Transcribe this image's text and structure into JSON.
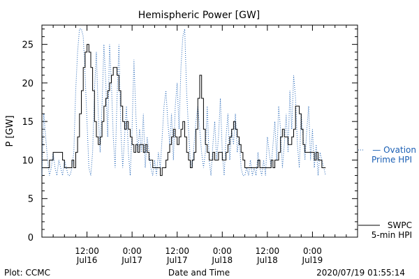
{
  "chart_data": {
    "type": "line",
    "title": "Hemispheric Power [GW]",
    "ylabel": "P [GW]",
    "xlabel": "Date and Time",
    "ylim": [
      0,
      27.5
    ],
    "yticks": [
      0,
      5,
      10,
      15,
      20,
      25
    ],
    "xlim_hours": [
      0,
      84
    ],
    "xticks": [
      {
        "hour": 12,
        "time": "12:00",
        "date": "Jul16"
      },
      {
        "hour": 24,
        "time": "0:00",
        "date": "Jul17"
      },
      {
        "hour": 36,
        "time": "12:00",
        "date": "Jul17"
      },
      {
        "hour": 48,
        "time": "0:00",
        "date": "Jul18"
      },
      {
        "hour": 60,
        "time": "12:00",
        "date": "Jul18"
      },
      {
        "hour": 72,
        "time": "0:00",
        "date": "Jul19"
      }
    ],
    "grid": false,
    "series": [
      {
        "name": "SWPC 5-min HPI",
        "color": "#000000",
        "style": "solid",
        "points": [
          [
            0,
            9
          ],
          [
            1,
            9
          ],
          [
            1.5,
            9
          ],
          [
            2,
            10
          ],
          [
            2.5,
            10
          ],
          [
            3,
            11
          ],
          [
            4,
            11
          ],
          [
            5,
            11
          ],
          [
            5.5,
            10
          ],
          [
            6,
            9
          ],
          [
            6.5,
            9
          ],
          [
            7,
            9
          ],
          [
            7.5,
            9
          ],
          [
            8,
            10
          ],
          [
            8.5,
            9
          ],
          [
            9,
            11
          ],
          [
            9.5,
            13
          ],
          [
            10,
            16
          ],
          [
            10.5,
            19
          ],
          [
            11,
            22
          ],
          [
            11.5,
            24
          ],
          [
            12,
            25
          ],
          [
            12.5,
            24
          ],
          [
            13,
            22
          ],
          [
            13.5,
            19
          ],
          [
            14,
            15
          ],
          [
            14.5,
            13
          ],
          [
            15,
            12
          ],
          [
            15.5,
            13
          ],
          [
            16,
            15
          ],
          [
            16.5,
            17
          ],
          [
            17,
            18
          ],
          [
            17.5,
            19
          ],
          [
            18,
            20
          ],
          [
            18.5,
            21
          ],
          [
            19,
            22
          ],
          [
            19.5,
            22
          ],
          [
            20,
            21
          ],
          [
            20.5,
            19
          ],
          [
            21,
            17
          ],
          [
            21.5,
            15
          ],
          [
            22,
            14
          ],
          [
            22.5,
            15
          ],
          [
            23,
            14
          ],
          [
            23.5,
            13
          ],
          [
            24,
            12
          ],
          [
            24.5,
            11
          ],
          [
            25,
            12
          ],
          [
            25.5,
            11
          ],
          [
            26,
            12
          ],
          [
            26.5,
            12
          ],
          [
            27,
            11
          ],
          [
            27.5,
            12
          ],
          [
            28,
            11
          ],
          [
            28.5,
            10
          ],
          [
            29,
            10
          ],
          [
            29.5,
            9
          ],
          [
            30,
            9
          ],
          [
            30.5,
            9
          ],
          [
            31,
            9
          ],
          [
            31.5,
            8
          ],
          [
            32,
            9
          ],
          [
            32.5,
            9
          ],
          [
            33,
            10
          ],
          [
            33.5,
            11
          ],
          [
            34,
            12
          ],
          [
            34.5,
            13
          ],
          [
            35,
            14
          ],
          [
            35.5,
            13
          ],
          [
            36,
            12
          ],
          [
            36.5,
            13
          ],
          [
            37,
            14
          ],
          [
            37.5,
            15
          ],
          [
            38,
            13
          ],
          [
            38.5,
            11
          ],
          [
            39,
            10
          ],
          [
            39.5,
            9
          ],
          [
            40,
            10
          ],
          [
            40.5,
            11
          ],
          [
            41,
            14
          ],
          [
            41.5,
            18
          ],
          [
            42,
            21
          ],
          [
            42.5,
            18
          ],
          [
            43,
            14
          ],
          [
            43.5,
            12
          ],
          [
            44,
            11
          ],
          [
            44.5,
            10
          ],
          [
            45,
            10
          ],
          [
            45.5,
            11
          ],
          [
            46,
            10
          ],
          [
            46.5,
            10
          ],
          [
            47,
            11
          ],
          [
            47.5,
            11
          ],
          [
            48,
            10
          ],
          [
            48.5,
            10
          ],
          [
            49,
            11
          ],
          [
            49.5,
            12
          ],
          [
            50,
            13
          ],
          [
            50.5,
            14
          ],
          [
            51,
            15
          ],
          [
            51.5,
            14
          ],
          [
            52,
            13
          ],
          [
            52.5,
            12
          ],
          [
            53,
            11
          ],
          [
            53.5,
            10
          ],
          [
            54,
            9
          ],
          [
            54.5,
            9
          ],
          [
            55,
            9
          ],
          [
            55.5,
            9
          ],
          [
            56,
            9
          ],
          [
            56.5,
            9
          ],
          [
            57,
            9
          ],
          [
            57.5,
            10
          ],
          [
            58,
            9
          ],
          [
            58.5,
            9
          ],
          [
            59,
            9
          ],
          [
            59.5,
            9
          ],
          [
            60,
            9
          ],
          [
            60.5,
            9
          ],
          [
            61,
            10
          ],
          [
            61.5,
            9
          ],
          [
            62,
            10
          ],
          [
            62.5,
            10
          ],
          [
            63,
            11
          ],
          [
            63.5,
            13
          ],
          [
            64,
            14
          ],
          [
            64.5,
            13
          ],
          [
            65,
            13
          ],
          [
            65.5,
            12
          ],
          [
            66,
            12
          ],
          [
            66.5,
            13
          ],
          [
            67,
            14
          ],
          [
            67.5,
            17
          ],
          [
            68,
            17
          ],
          [
            68.5,
            16
          ],
          [
            69,
            14
          ],
          [
            69.5,
            12
          ],
          [
            70,
            11
          ],
          [
            70.5,
            11
          ],
          [
            71,
            11
          ],
          [
            71.5,
            11
          ],
          [
            72,
            11
          ],
          [
            72.5,
            10
          ],
          [
            73,
            11
          ],
          [
            73.5,
            10
          ],
          [
            74,
            10
          ],
          [
            74.5,
            9
          ],
          [
            75,
            9
          ],
          [
            75.5,
            9
          ]
        ]
      },
      {
        "name": "Ovation Prime HPI",
        "color": "#1a5fb4",
        "style": "dotted",
        "points": [
          [
            0,
            8
          ],
          [
            0.5,
            16
          ],
          [
            1,
            13
          ],
          [
            1.5,
            10
          ],
          [
            2,
            8
          ],
          [
            2.5,
            9
          ],
          [
            3,
            11
          ],
          [
            3.5,
            9
          ],
          [
            4,
            8
          ],
          [
            4.5,
            10
          ],
          [
            5,
            9
          ],
          [
            5.5,
            8
          ],
          [
            6,
            10
          ],
          [
            6.5,
            9
          ],
          [
            7,
            8
          ],
          [
            7.5,
            8
          ],
          [
            8,
            9
          ],
          [
            8.5,
            11
          ],
          [
            9,
            19
          ],
          [
            9.5,
            24
          ],
          [
            10,
            27
          ],
          [
            10.5,
            27
          ],
          [
            11,
            26
          ],
          [
            11.5,
            21
          ],
          [
            12,
            15
          ],
          [
            12.5,
            9
          ],
          [
            13,
            8
          ],
          [
            13.5,
            11
          ],
          [
            14,
            19
          ],
          [
            14.5,
            24
          ],
          [
            15,
            16
          ],
          [
            15.5,
            11
          ],
          [
            16,
            17
          ],
          [
            16.5,
            25
          ],
          [
            17,
            20
          ],
          [
            17.5,
            13
          ],
          [
            18,
            25
          ],
          [
            18.5,
            20
          ],
          [
            19,
            13
          ],
          [
            19.5,
            9
          ],
          [
            20,
            18
          ],
          [
            20.5,
            25
          ],
          [
            21,
            14
          ],
          [
            21.5,
            9
          ],
          [
            22,
            13
          ],
          [
            22.5,
            17
          ],
          [
            23,
            11
          ],
          [
            23.5,
            8
          ],
          [
            24,
            14
          ],
          [
            24.5,
            23
          ],
          [
            25,
            16
          ],
          [
            25.5,
            11
          ],
          [
            26,
            14
          ],
          [
            26.5,
            11
          ],
          [
            27,
            16
          ],
          [
            27.5,
            9
          ],
          [
            28,
            13
          ],
          [
            28.5,
            11
          ],
          [
            29,
            9
          ],
          [
            29.5,
            8
          ],
          [
            30,
            10
          ],
          [
            30.5,
            8
          ],
          [
            31,
            11
          ],
          [
            31.5,
            9
          ],
          [
            32,
            13
          ],
          [
            32.5,
            17
          ],
          [
            33,
            19
          ],
          [
            33.5,
            15
          ],
          [
            34,
            12
          ],
          [
            34.5,
            16
          ],
          [
            35,
            10
          ],
          [
            35.5,
            17
          ],
          [
            36,
            20
          ],
          [
            36.5,
            14
          ],
          [
            37,
            22
          ],
          [
            37.5,
            26
          ],
          [
            38,
            27
          ],
          [
            38.5,
            19
          ],
          [
            39,
            14
          ],
          [
            39.5,
            10
          ],
          [
            40,
            9
          ],
          [
            40.5,
            12
          ],
          [
            41,
            15
          ],
          [
            41.5,
            17
          ],
          [
            42,
            14
          ],
          [
            42.5,
            11
          ],
          [
            43,
            9
          ],
          [
            43.5,
            11
          ],
          [
            44,
            17
          ],
          [
            44.5,
            10
          ],
          [
            45,
            8
          ],
          [
            45.5,
            12
          ],
          [
            46,
            15
          ],
          [
            46.5,
            10
          ],
          [
            47,
            13
          ],
          [
            47.5,
            18
          ],
          [
            48,
            11
          ],
          [
            48.5,
            8
          ],
          [
            49,
            13
          ],
          [
            49.5,
            16
          ],
          [
            50,
            10
          ],
          [
            50.5,
            14
          ],
          [
            51,
            12
          ],
          [
            51.5,
            16
          ],
          [
            52,
            11
          ],
          [
            52.5,
            13
          ],
          [
            53,
            9
          ],
          [
            53.5,
            8
          ],
          [
            54,
            8
          ],
          [
            54.5,
            9
          ],
          [
            55,
            8
          ],
          [
            55.5,
            10
          ],
          [
            56,
            8
          ],
          [
            56.5,
            9
          ],
          [
            57,
            8
          ],
          [
            57.5,
            11
          ],
          [
            58,
            9
          ],
          [
            58.5,
            8
          ],
          [
            59,
            10
          ],
          [
            59.5,
            8
          ],
          [
            60,
            13
          ],
          [
            60.5,
            11
          ],
          [
            61,
            9
          ],
          [
            61.5,
            12
          ],
          [
            62,
            15
          ],
          [
            62.5,
            10
          ],
          [
            63,
            17
          ],
          [
            63.5,
            14
          ],
          [
            64,
            9
          ],
          [
            64.5,
            12
          ],
          [
            65,
            16
          ],
          [
            65.5,
            11
          ],
          [
            66,
            19
          ],
          [
            66.5,
            14
          ],
          [
            67,
            21
          ],
          [
            67.5,
            18
          ],
          [
            68,
            12
          ],
          [
            68.5,
            9
          ],
          [
            69,
            16
          ],
          [
            69.5,
            13
          ],
          [
            70,
            10
          ],
          [
            70.5,
            14
          ],
          [
            71,
            17
          ],
          [
            71.5,
            10
          ],
          [
            72,
            14
          ],
          [
            72.5,
            9
          ],
          [
            73,
            12
          ],
          [
            73.5,
            8
          ],
          [
            74,
            11
          ],
          [
            74.5,
            10
          ],
          [
            75,
            9
          ],
          [
            75.5,
            8
          ]
        ]
      }
    ]
  },
  "legend": {
    "swpc": [
      "SWPC",
      "5-min HPI"
    ],
    "ovation": [
      "— Ovation",
      "Prime HPI"
    ]
  },
  "footer": {
    "left": "Plot: CCMC",
    "right": "2020/07/19 01:55:14"
  }
}
